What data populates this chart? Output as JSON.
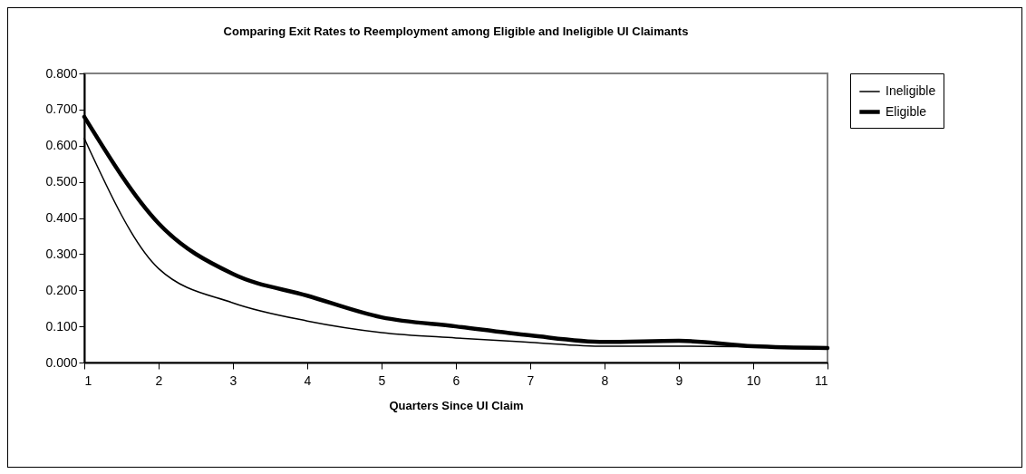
{
  "chart_data": {
    "type": "line",
    "title": "Comparing Exit Rates to Reemployment among Eligible and Ineligible UI Claimants",
    "xlabel": "Quarters Since UI Claim",
    "x": [
      1,
      2,
      3,
      4,
      5,
      6,
      7,
      8,
      9,
      10,
      11
    ],
    "series": [
      {
        "name": "Ineligible",
        "color": "#000000",
        "values": [
          0.62,
          0.26,
          0.165,
          0.115,
          0.083,
          0.068,
          0.056,
          0.045,
          0.045,
          0.043,
          0.04
        ]
      },
      {
        "name": "Eligible",
        "color": "#000000",
        "values": [
          0.68,
          0.385,
          0.245,
          0.185,
          0.125,
          0.1,
          0.075,
          0.057,
          0.06,
          0.045,
          0.04
        ]
      }
    ],
    "xlim": [
      1,
      11
    ],
    "xticks": [
      1,
      2,
      3,
      4,
      5,
      6,
      7,
      8,
      9,
      10,
      11
    ],
    "ylim": [
      0,
      0.8
    ],
    "yticks": [
      {
        "value": 0,
        "label": "0.000"
      },
      {
        "value": 0.1,
        "label": "0.100"
      },
      {
        "value": 0.2,
        "label": "0.200"
      },
      {
        "value": 0.3,
        "label": "0.300"
      },
      {
        "value": 0.4,
        "label": "0.400"
      },
      {
        "value": 0.5,
        "label": "0.500"
      },
      {
        "value": 0.6,
        "label": "0.600"
      },
      {
        "value": 0.7,
        "label": "0.700"
      },
      {
        "value": 0.8,
        "label": "0.800"
      }
    ],
    "grid": false,
    "legend": "right",
    "marker": "none",
    "line_style": "solid"
  }
}
